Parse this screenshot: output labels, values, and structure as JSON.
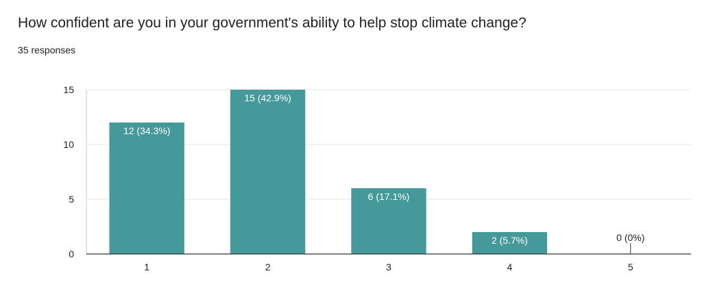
{
  "question": {
    "title": "How confident are you in your government's ability to help stop climate change?",
    "responses": "35 responses"
  },
  "colors": {
    "bar": "#46999a",
    "label_inside": "#ffffff",
    "label_outside": "#202124",
    "grid": "#e6e6e6",
    "axis": "#333333"
  },
  "chart_data": {
    "type": "bar",
    "title": "How confident are you in your government's ability to help stop climate change?",
    "subtitle": "35 responses",
    "categories": [
      "1",
      "2",
      "3",
      "4",
      "5"
    ],
    "values": [
      12,
      15,
      6,
      2,
      0
    ],
    "data_labels": [
      "12 (34.3%)",
      "15 (42.9%)",
      "6 (17.1%)",
      "2 (5.7%)",
      "0 (0%)"
    ],
    "xlabel": "",
    "ylabel": "",
    "ylim": [
      0,
      15
    ],
    "yticks": [
      0,
      5,
      10,
      15
    ],
    "grid": true,
    "legend": "none"
  }
}
